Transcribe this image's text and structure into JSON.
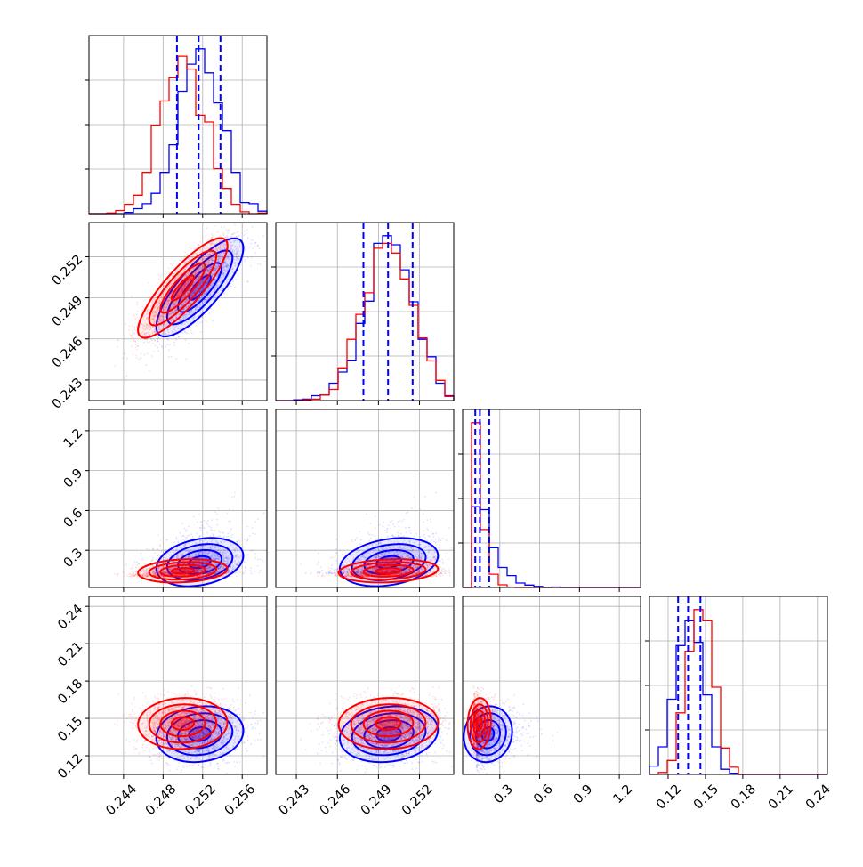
{
  "chart_data": {
    "type": "corner",
    "colors": {
      "series_a": "#0000ff",
      "series_b": "#ff0000",
      "quantile_lines": "#0000ff",
      "grid": "#b0b0b0"
    },
    "grid": true,
    "parameters": [
      {
        "range": [
          0.2405,
          0.2585
        ],
        "ticks": [
          "0.244",
          "0.248",
          "0.252",
          "0.256"
        ],
        "tick_values": [
          0.244,
          0.248,
          0.252,
          0.256
        ],
        "quantiles": [
          0.2494,
          0.2516,
          0.2538
        ]
      },
      {
        "range": [
          0.2415,
          0.2545
        ],
        "ticks": [
          "0.243",
          "0.246",
          "0.249",
          "0.252"
        ],
        "tick_values": [
          0.243,
          0.246,
          0.249,
          0.252
        ],
        "quantiles": [
          0.2479,
          0.2497,
          0.2515
        ]
      },
      {
        "range": [
          0.02,
          1.36
        ],
        "ticks": [
          "0.3",
          "0.6",
          "0.9",
          "1.2"
        ],
        "tick_values": [
          0.3,
          0.6,
          0.9,
          1.2
        ],
        "quantiles": [
          0.115,
          0.15,
          0.22
        ]
      },
      {
        "range": [
          0.105,
          0.248
        ],
        "ticks": [
          "0.12",
          "0.15",
          "0.18",
          "0.21",
          "0.24"
        ],
        "tick_values": [
          0.12,
          0.15,
          0.18,
          0.21,
          0.24
        ],
        "quantiles": [
          0.128,
          0.136,
          0.146
        ]
      }
    ],
    "samples": {
      "a": {
        "mean": [
          0.2516,
          0.2497,
          0.21,
          0.137
        ],
        "sd": [
          0.0022,
          0.0018,
          0.08,
          0.011
        ],
        "corr": [
          [
            1,
            0.8,
            0.3,
            0.1
          ],
          [
            0.8,
            1,
            0.3,
            0.1
          ],
          [
            0.3,
            0.3,
            1,
            0.1
          ],
          [
            0.1,
            0.1,
            0.1,
            1
          ]
        ]
      },
      "b": {
        "mean": [
          0.25,
          0.2497,
          0.145,
          0.146
        ],
        "sd": [
          0.0022,
          0.0018,
          0.04,
          0.01
        ],
        "corr": [
          [
            1,
            0.85,
            0.2,
            0.05
          ],
          [
            0.85,
            1,
            0.2,
            0.05
          ],
          [
            0.2,
            0.2,
            1,
            0.05
          ],
          [
            0.05,
            0.05,
            0.05,
            1
          ]
        ]
      }
    }
  }
}
